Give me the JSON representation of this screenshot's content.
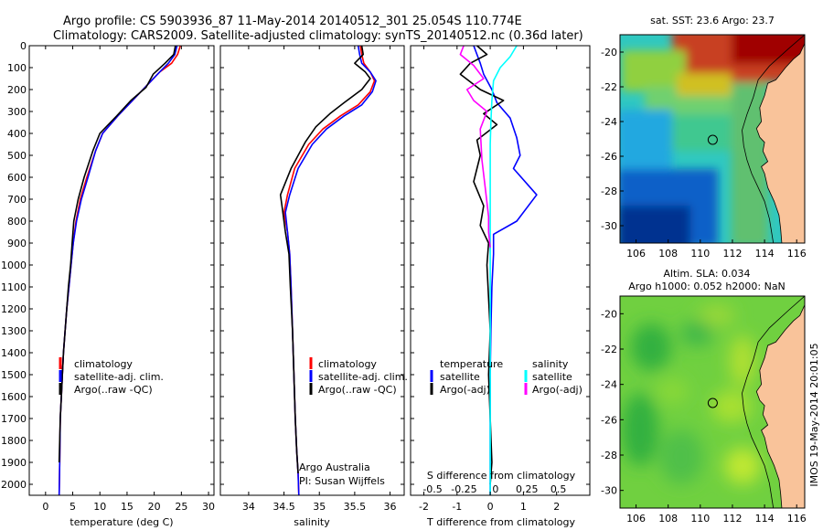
{
  "header": {
    "line1": "Argo profile: CS 5903936_87 11-May-2014 20140512_301 25.054S 110.774E",
    "line2": "Climatology: CARS2009. Satellite-adjusted climatology: synTS_20140512.nc (0.36d later)"
  },
  "side_stamp": "IMOS 19-May-2014 20:01:05",
  "colors": {
    "climatology": "#ff0000",
    "satellite": "#0000ff",
    "argo": "#000000",
    "magenta": "#ff00ff",
    "cyan": "#00ffff",
    "land": "#f9c39a"
  },
  "chart_data": [
    {
      "type": "line",
      "xlabel": "temperature (deg C)",
      "xlim": [
        -3,
        31
      ],
      "ylim": [
        2050,
        0
      ],
      "xticks": [
        "0",
        "5",
        "10",
        "15",
        "20",
        "25",
        "30"
      ],
      "xtick_values": [
        0,
        5,
        10,
        15,
        20,
        25,
        30
      ],
      "yticks": [
        "0",
        "100",
        "200",
        "300",
        "400",
        "500",
        "600",
        "700",
        "800",
        "900",
        "1000",
        "1100",
        "1200",
        "1300",
        "1400",
        "1500",
        "1600",
        "1700",
        "1800",
        "1900",
        "2000"
      ],
      "ytick_values": [
        0,
        100,
        200,
        300,
        400,
        500,
        600,
        700,
        800,
        900,
        1000,
        1100,
        1200,
        1300,
        1400,
        1500,
        1600,
        1700,
        1800,
        1900,
        2000
      ],
      "legend": [
        "climatology",
        "satellite-adj. clim.",
        "Argo(..raw -QC)"
      ],
      "series": [
        {
          "name": "climatology",
          "color": "#ff0000",
          "x": [
            24.8,
            24.3,
            23.2,
            21.0,
            18.7,
            16.0,
            13.3,
            10.5,
            9.2,
            7.6,
            6.4,
            5.6,
            5.1,
            4.7,
            4.3,
            3.9,
            3.6,
            3.3,
            3.1,
            2.9,
            2.7,
            2.6,
            2.5
          ],
          "y": [
            0,
            40,
            80,
            120,
            180,
            250,
            320,
            400,
            480,
            600,
            700,
            800,
            900,
            1000,
            1100,
            1200,
            1300,
            1400,
            1500,
            1600,
            1700,
            1900,
            2050
          ]
        },
        {
          "name": "satellite-adj. clim.",
          "color": "#0000ff",
          "x": [
            24.2,
            23.8,
            22.6,
            21.0,
            18.7,
            16.0,
            13.3,
            10.5,
            9.2,
            7.8,
            6.6,
            5.7,
            5.1,
            4.7,
            4.3,
            3.9,
            3.6,
            3.3,
            3.1,
            2.9,
            2.7,
            2.6,
            2.5
          ],
          "y": [
            0,
            40,
            80,
            120,
            180,
            250,
            320,
            400,
            480,
            600,
            700,
            800,
            900,
            1000,
            1100,
            1200,
            1300,
            1400,
            1500,
            1600,
            1700,
            1900,
            2050
          ]
        },
        {
          "name": "Argo(..raw -QC)",
          "color": "#000000",
          "x": [
            23.9,
            23.6,
            22.0,
            19.8,
            18.5,
            15.7,
            13.1,
            10.0,
            8.7,
            7.1,
            6.0,
            5.2,
            4.9,
            4.6,
            4.2,
            3.9,
            3.6,
            3.3,
            3.1,
            2.9,
            2.7,
            2.5
          ],
          "y": [
            0,
            40,
            80,
            130,
            190,
            250,
            320,
            400,
            480,
            600,
            700,
            800,
            900,
            1000,
            1100,
            1200,
            1300,
            1400,
            1500,
            1600,
            1700,
            1900
          ]
        }
      ]
    },
    {
      "type": "line",
      "xlabel": "salinity",
      "xlim": [
        33.6,
        36.2
      ],
      "ylim": [
        2050,
        0
      ],
      "xticks": [
        "34",
        "34.5",
        "35",
        "35.5",
        "36"
      ],
      "xtick_values": [
        34,
        34.5,
        35,
        35.5,
        36
      ],
      "legend": [
        "climatology",
        "satellite-adj. clim.",
        "Argo(..raw -QC)"
      ],
      "annotations": [
        "Argo Australia",
        "PI: Susan Wijffels"
      ],
      "series": [
        {
          "name": "climatology",
          "color": "#ff0000",
          "x": [
            35.58,
            35.6,
            35.63,
            35.72,
            35.78,
            35.72,
            35.55,
            35.3,
            35.05,
            34.85,
            34.65,
            34.55,
            34.5,
            34.55,
            34.58,
            34.6,
            34.62,
            34.64,
            34.66,
            34.68,
            34.7,
            34.71
          ],
          "y": [
            0,
            40,
            80,
            120,
            160,
            210,
            270,
            320,
            380,
            450,
            560,
            680,
            760,
            850,
            950,
            1100,
            1300,
            1500,
            1700,
            1850,
            1950,
            2050
          ]
        },
        {
          "name": "satellite-adj. clim.",
          "color": "#0000ff",
          "x": [
            35.55,
            35.57,
            35.6,
            35.72,
            35.8,
            35.75,
            35.6,
            35.35,
            35.1,
            34.9,
            34.7,
            34.58,
            34.52,
            34.55,
            34.58,
            34.6,
            34.62,
            34.64,
            34.66,
            34.68,
            34.7,
            34.71
          ],
          "y": [
            0,
            40,
            80,
            120,
            160,
            210,
            270,
            320,
            380,
            450,
            560,
            680,
            760,
            850,
            950,
            1100,
            1300,
            1500,
            1700,
            1850,
            1950,
            2050
          ]
        },
        {
          "name": "Argo(..raw -QC)",
          "color": "#000000",
          "x": [
            35.6,
            35.62,
            35.5,
            35.65,
            35.72,
            35.6,
            35.35,
            35.15,
            34.95,
            34.8,
            34.6,
            34.45,
            34.48,
            34.52,
            34.57,
            34.59,
            34.62,
            34.64,
            34.66,
            34.68,
            34.7
          ],
          "y": [
            0,
            40,
            80,
            120,
            150,
            200,
            260,
            310,
            370,
            440,
            560,
            680,
            750,
            850,
            950,
            1100,
            1300,
            1500,
            1700,
            1850,
            1950
          ]
        }
      ]
    },
    {
      "type": "line",
      "xlabel": "T difference from climatology",
      "x2label": "S difference from climatology",
      "xlim": [
        -2.4,
        3.0
      ],
      "ylim": [
        2050,
        0
      ],
      "xticks": [
        "-2",
        "-1",
        "0",
        "1",
        "2"
      ],
      "xtick_values": [
        -2,
        -1,
        0,
        1,
        2
      ],
      "x2ticks": [
        "-0.5",
        "-0.25",
        "0",
        "0.25",
        "0.5"
      ],
      "legend_groups": [
        {
          "title": "temperature",
          "entries": [
            "satellite",
            "Argo(-adj)"
          ]
        },
        {
          "title": "salinity",
          "entries": [
            "satellite",
            "Argo(-adj)"
          ]
        }
      ],
      "series": [
        {
          "name": "temperature satellite",
          "color": "#0000ff",
          "x": [
            -0.5,
            -0.4,
            -0.3,
            -0.2,
            0.05,
            0.2,
            0.6,
            0.8,
            0.9,
            0.7,
            1.4,
            0.8,
            0.1,
            0.1,
            0.05,
            0.02,
            0.0,
            0.0,
            0.0,
            0.0
          ],
          "y": [
            0,
            40,
            80,
            130,
            200,
            260,
            330,
            420,
            500,
            560,
            680,
            800,
            860,
            950,
            1100,
            1300,
            1500,
            1700,
            1900,
            2050
          ]
        },
        {
          "name": "temperature Argo(-adj)",
          "color": "#000000",
          "x": [
            -0.4,
            -0.1,
            -0.6,
            -0.9,
            -0.3,
            0.4,
            -0.2,
            0.2,
            -0.4,
            -0.3,
            -0.5,
            -0.2,
            -0.3,
            -0.05,
            -0.1,
            -0.05,
            0.0,
            -0.05,
            0.0,
            0.05,
            0.0
          ],
          "y": [
            0,
            40,
            80,
            130,
            200,
            250,
            310,
            360,
            430,
            500,
            620,
            730,
            820,
            900,
            1000,
            1150,
            1300,
            1500,
            1700,
            1900,
            2000
          ]
        },
        {
          "name": "salinity satellite",
          "color": "#00ffff",
          "x": [
            0.8,
            0.6,
            0.3,
            0.1,
            0.05,
            0.02,
            0.0,
            0.0,
            0.0,
            0.0,
            0.0,
            0.0,
            0.0
          ],
          "y": [
            0,
            50,
            100,
            160,
            250,
            350,
            450,
            600,
            800,
            1100,
            1400,
            1700,
            2050
          ]
        },
        {
          "name": "salinity Argo(-adj)",
          "color": "#ff00ff",
          "x": [
            -0.8,
            -0.9,
            -0.5,
            -0.2,
            -0.7,
            -0.5,
            -0.1,
            -0.3,
            -0.25,
            -0.15,
            -0.05,
            -0.05,
            0.0
          ],
          "y": [
            0,
            40,
            90,
            150,
            200,
            250,
            300,
            380,
            520,
            650,
            780,
            850,
            920
          ]
        }
      ]
    },
    {
      "type": "heatmap",
      "title": "sat. SST: 23.6 Argo: 23.7",
      "xlim": [
        105,
        116.5
      ],
      "ylim": [
        -31,
        -19
      ],
      "xticks": [
        "106",
        "108",
        "110",
        "112",
        "114",
        "116"
      ],
      "xtick_values": [
        106,
        108,
        110,
        112,
        114,
        116
      ],
      "yticks": [
        "-20",
        "-22",
        "-24",
        "-26",
        "-28",
        "-30"
      ],
      "ytick_values": [
        -20,
        -22,
        -24,
        -26,
        -28,
        -30
      ],
      "marker": {
        "lon": 110.774,
        "lat": -25.054
      }
    },
    {
      "type": "heatmap",
      "title": "Altim. SLA: 0.034",
      "subtitle": "Argo h1000: 0.052 h2000: NaN",
      "xlim": [
        105,
        116.5
      ],
      "ylim": [
        -31,
        -19
      ],
      "xticks": [
        "106",
        "108",
        "110",
        "112",
        "114",
        "116"
      ],
      "xtick_values": [
        106,
        108,
        110,
        112,
        114,
        116
      ],
      "yticks": [
        "-20",
        "-22",
        "-24",
        "-26",
        "-28",
        "-30"
      ],
      "ytick_values": [
        -20,
        -22,
        -24,
        -26,
        -28,
        -30
      ],
      "marker": {
        "lon": 110.774,
        "lat": -25.054
      }
    }
  ]
}
